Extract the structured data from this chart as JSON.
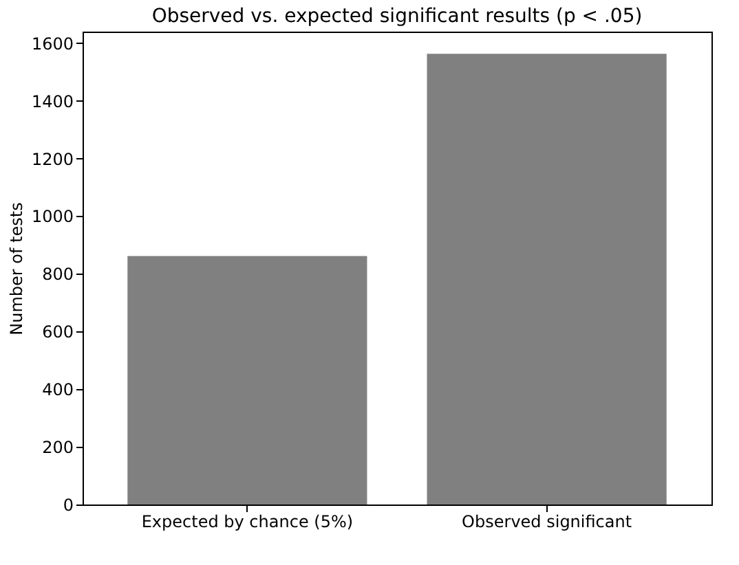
{
  "chart_data": {
    "type": "bar",
    "title": "Observed vs. expected significant results (p < .05)",
    "ylabel": "Number of tests",
    "categories": [
      "Expected by chance (5%)",
      "Observed significant"
    ],
    "values": [
      862,
      1563
    ],
    "color": "#808080",
    "ylim": [
      0,
      1640
    ],
    "yticks": [
      0,
      200,
      400,
      600,
      800,
      1000,
      1200,
      1400,
      1600
    ],
    "grid": false
  }
}
